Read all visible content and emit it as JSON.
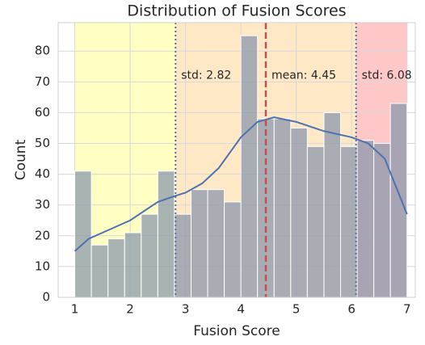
{
  "chart_data": {
    "type": "histogram",
    "title": "Distribution of Fusion Scores",
    "x_label": "Fusion Score",
    "y_label": "Count",
    "bins": [
      1.0,
      1.3,
      1.6,
      1.9,
      2.2,
      2.5,
      2.8,
      3.1,
      3.4,
      3.7,
      4.0,
      4.3,
      4.6,
      4.9,
      5.2,
      5.5,
      5.8,
      6.1,
      6.4,
      6.7,
      7.0
    ],
    "values": [
      41,
      17,
      19,
      21,
      27,
      41,
      27,
      35,
      35,
      31,
      85,
      58,
      58,
      55,
      49,
      60,
      49,
      51,
      50,
      63
    ],
    "color": "#8594ab",
    "kde": {
      "color": "#4c72b0",
      "x": [
        1.0,
        1.25,
        1.5,
        2.0,
        2.5,
        2.82,
        3.0,
        3.3,
        3.6,
        4.0,
        4.3,
        4.6,
        5.0,
        5.5,
        6.0,
        6.3,
        6.6,
        7.0
      ],
      "values": [
        15,
        19,
        21,
        25,
        31,
        33,
        34,
        37,
        42,
        52,
        57,
        58.5,
        57,
        54,
        52,
        50,
        45,
        27
      ]
    },
    "spans": [
      {
        "from": 1,
        "to": 2.82,
        "color": "#ffffc4"
      },
      {
        "from": 2.82,
        "to": 6.08,
        "color": "#ffe8c6"
      },
      {
        "from": 6.08,
        "to": 7,
        "color": "#ffc8c8"
      }
    ],
    "lines": [
      {
        "value": 2.82,
        "label": "std: 2.82",
        "color": "#5a6e9c",
        "style": "dotted"
      },
      {
        "value": 4.45,
        "label": "mean: 4.45",
        "color": "#c44e52",
        "style": "dashed"
      },
      {
        "value": 6.08,
        "label": "std: 6.08",
        "color": "#5a6e9c",
        "style": "dotted"
      }
    ],
    "xlim": [
      0.7,
      7.15
    ],
    "ylim": [
      0,
      89.25
    ],
    "xticks": [
      1,
      2,
      3,
      4,
      5,
      6,
      7
    ],
    "yticks": [
      0,
      10,
      20,
      30,
      40,
      50,
      60,
      70,
      80
    ],
    "grid": true
  }
}
